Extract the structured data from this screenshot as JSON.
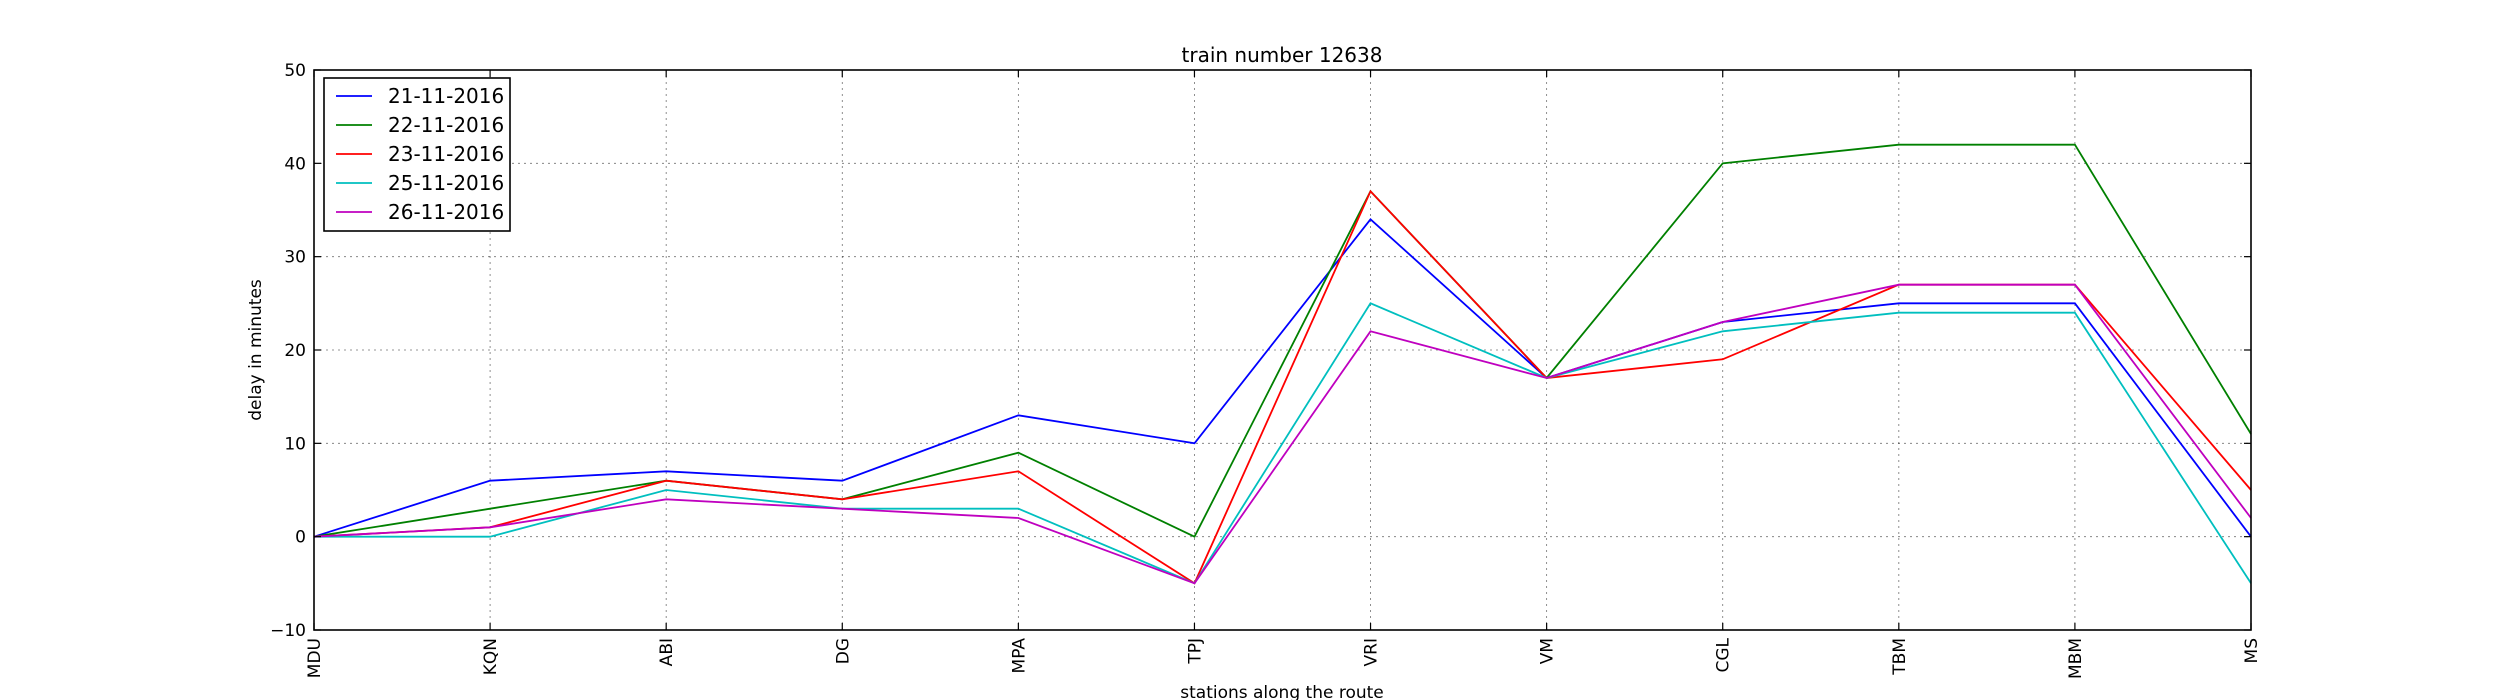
{
  "chart_data": {
    "type": "line",
    "title": "train number 12638",
    "xlabel": "stations along the route",
    "ylabel": "delay in minutes",
    "categories": [
      "MDU",
      "KQN",
      "ABI",
      "DG",
      "MPA",
      "TPJ",
      "VRI",
      "VM",
      "CGL",
      "TBM",
      "MBM",
      "MS"
    ],
    "ylim": [
      -10,
      50
    ],
    "yticks": [
      -10,
      0,
      10,
      20,
      30,
      40,
      50
    ],
    "grid": true,
    "legend_position": "top-left",
    "series": [
      {
        "name": "21-11-2016",
        "color": "#0000ff",
        "values": [
          0,
          6,
          7,
          6,
          13,
          10,
          34,
          17,
          23,
          25,
          25,
          0
        ]
      },
      {
        "name": "22-11-2016",
        "color": "#008000",
        "values": [
          0,
          3,
          6,
          4,
          9,
          0,
          37,
          17,
          40,
          42,
          42,
          11
        ]
      },
      {
        "name": "23-11-2016",
        "color": "#ff0000",
        "values": [
          0,
          1,
          6,
          4,
          7,
          -5,
          37,
          17,
          19,
          27,
          27,
          5
        ]
      },
      {
        "name": "25-11-2016",
        "color": "#00bfbf",
        "values": [
          0,
          0,
          5,
          3,
          3,
          -5,
          25,
          17,
          22,
          24,
          24,
          -5
        ]
      },
      {
        "name": "26-11-2016",
        "color": "#bf00bf",
        "values": [
          0,
          1,
          4,
          3,
          2,
          -5,
          22,
          17,
          23,
          27,
          27,
          2
        ]
      }
    ]
  }
}
